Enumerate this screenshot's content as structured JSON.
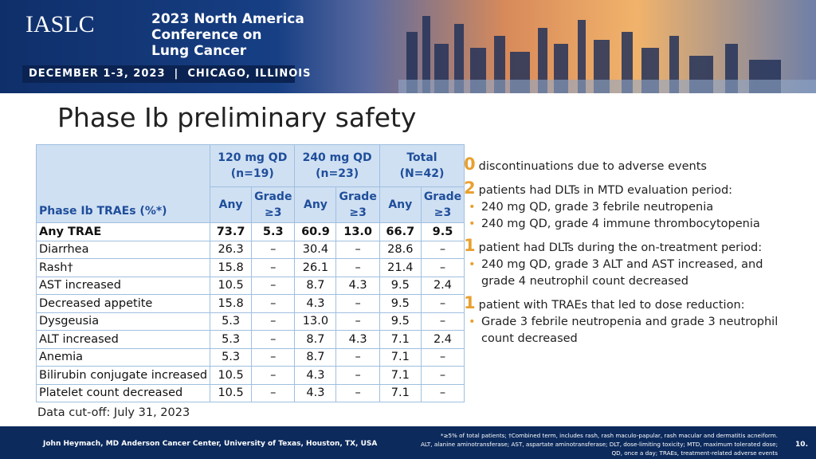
{
  "header": {
    "org": "IASLC",
    "conference": [
      "2023 North America",
      "Conference on",
      "Lung Cancer"
    ],
    "dates": "DECEMBER 1-3, 2023  |  CHICAGO, ILLINOIS"
  },
  "title": "Phase Ib preliminary safety",
  "table": {
    "row_header": "Phase Ib TRAEs (%*)",
    "groups": [
      {
        "name": "120 mg QD",
        "n": "(n=19)"
      },
      {
        "name": "240 mg QD",
        "n": "(n=23)"
      },
      {
        "name": "Total",
        "n": "(N=42)"
      }
    ],
    "subheaders": [
      "Any",
      "Grade ≥3",
      "Any",
      "Grade ≥3",
      "Any",
      "Grade ≥3"
    ],
    "rows": [
      [
        "Any TRAE",
        "73.7",
        "5.3",
        "60.9",
        "13.0",
        "66.7",
        "9.5"
      ],
      [
        "Diarrhea",
        "26.3",
        "–",
        "30.4",
        "–",
        "28.6",
        "–"
      ],
      [
        "Rash†",
        "15.8",
        "–",
        "26.1",
        "–",
        "21.4",
        "–"
      ],
      [
        "AST increased",
        "10.5",
        "–",
        "8.7",
        "4.3",
        "9.5",
        "2.4"
      ],
      [
        "Decreased appetite",
        "15.8",
        "–",
        "4.3",
        "–",
        "9.5",
        "–"
      ],
      [
        "Dysgeusia",
        "5.3",
        "–",
        "13.0",
        "–",
        "9.5",
        "–"
      ],
      [
        "ALT increased",
        "5.3",
        "–",
        "8.7",
        "4.3",
        "7.1",
        "2.4"
      ],
      [
        "Anemia",
        "5.3",
        "–",
        "8.7",
        "–",
        "7.1",
        "–"
      ],
      [
        "Bilirubin conjugate increased",
        "10.5",
        "–",
        "4.3",
        "–",
        "7.1",
        "–"
      ],
      [
        "Platelet count decreased",
        "10.5",
        "–",
        "4.3",
        "–",
        "7.1",
        "–"
      ]
    ]
  },
  "summary": [
    {
      "count": "0",
      "text": "discontinuations due to adverse events",
      "bullets": []
    },
    {
      "count": "2",
      "text": "patients had DLTs in MTD evaluation period:",
      "bullets": [
        "240 mg QD, grade 3 febrile neutropenia",
        "240 mg QD, grade 4 immune thrombocytopenia"
      ]
    },
    {
      "count": "1",
      "text": "patient had DLTs during the on-treatment period:",
      "bullets": [
        "240 mg QD, grade 3 ALT and AST increased, and grade 4 neutrophil count decreased"
      ]
    },
    {
      "count": "1",
      "text": "patient with TRAEs that led to dose reduction:",
      "bullets": [
        "Grade 3 febrile neutropenia and grade 3 neutrophil count decreased"
      ]
    }
  ],
  "cutoff": "Data cut-off: July 31, 2023",
  "footer": {
    "author": "John Heymach, MD Anderson Cancer Center, University of Texas, Houston, TX, USA",
    "notes": [
      "*≥5% of total patients; †Combined term, includes rash, rash maculo-papular, rash macular and dermatitis acneiform.",
      "ALT, alanine aminotransferase; AST, aspartate aminotransferase; DLT, dose-limiting toxicity; MTD, maximum tolerated dose;",
      "QD, once a day; TRAEs, treatment-related adverse events"
    ],
    "page": "10."
  }
}
